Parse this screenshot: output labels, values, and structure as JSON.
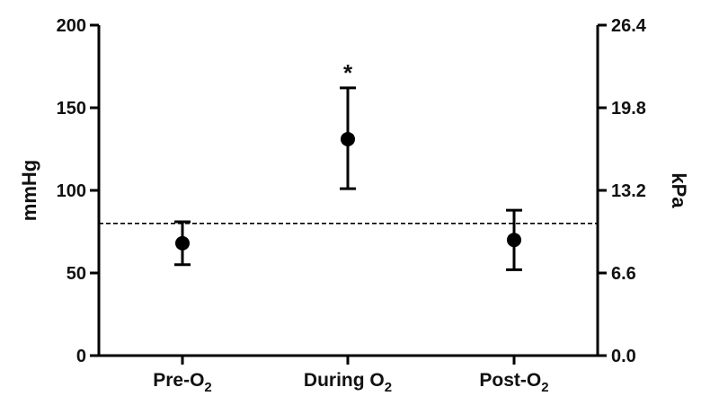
{
  "chart_data": {
    "type": "scatter",
    "categories": [
      {
        "base": "Pre-O",
        "sub": "2",
        "after": ""
      },
      {
        "base": "During O",
        "sub": "2",
        "after": ""
      },
      {
        "base": "Post-O",
        "sub": "2",
        "after": ""
      }
    ],
    "points": [
      {
        "mean": 68,
        "lower": 55,
        "upper": 81,
        "annotation": ""
      },
      {
        "mean": 131,
        "lower": 101,
        "upper": 162,
        "annotation": "*"
      },
      {
        "mean": 70,
        "lower": 52,
        "upper": 88,
        "annotation": ""
      }
    ],
    "reference_line": {
      "y": 80,
      "style": "dashed"
    },
    "ylabel": "mmHg",
    "ylim": [
      0,
      200
    ],
    "yticks": [
      "0",
      "50",
      "100",
      "150",
      "200"
    ],
    "y2label": "kPa",
    "y2ticks": [
      "0.0",
      "6.6",
      "13.2",
      "19.8",
      "26.4"
    ],
    "grid": false,
    "legend": "none",
    "colors": {
      "marker": "#000000",
      "axis": "#000000"
    }
  }
}
